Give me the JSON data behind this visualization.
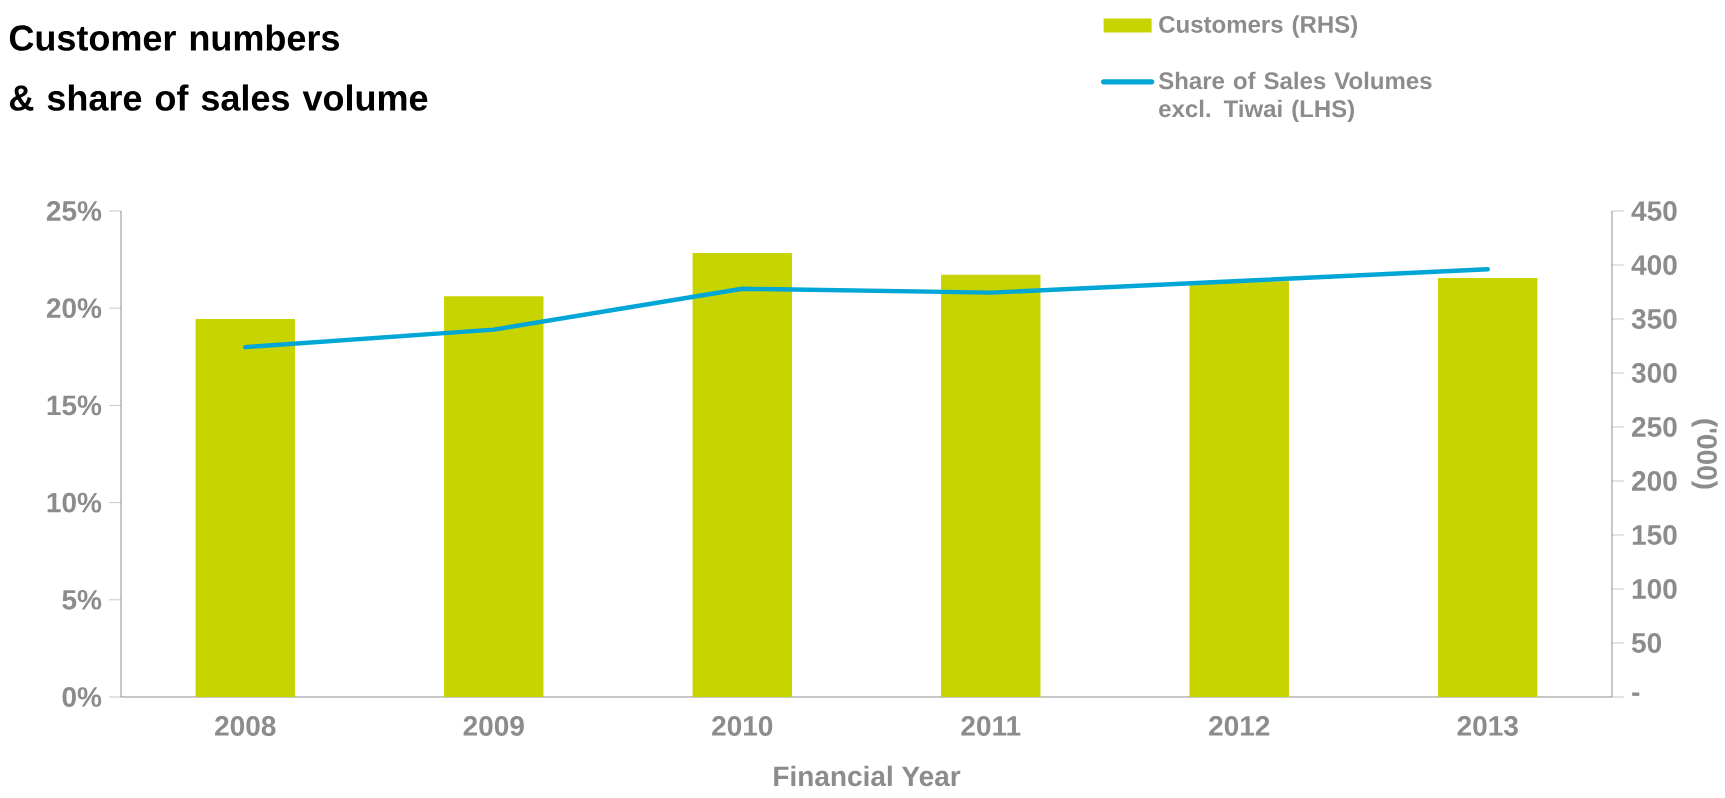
{
  "chart_data": {
    "type": "bar",
    "title": "Customer numbers\n& share of sales volume",
    "xlabel": "Financial Year",
    "y2label": "('000)",
    "categories": [
      "2008",
      "2009",
      "2010",
      "2011",
      "2012",
      "2013"
    ],
    "series": [
      {
        "name": "Customers (RHS)",
        "axis": "y2",
        "color": "#c8d400",
        "values": [
          350,
          371,
          411,
          391,
          385,
          388
        ]
      },
      {
        "name": "Share of Sales Volumes excl. Tiwai (LHS)",
        "type": "line",
        "axis": "y",
        "color": "#00a6d6",
        "values": [
          18.0,
          18.9,
          21.0,
          20.8,
          21.4,
          22.0
        ]
      }
    ],
    "ylim": [
      0,
      25
    ],
    "yticks": [
      {
        "value": 0,
        "label": "0%"
      },
      {
        "value": 5,
        "label": "5%"
      },
      {
        "value": 10,
        "label": "10%"
      },
      {
        "value": 15,
        "label": "15%"
      },
      {
        "value": 20,
        "label": "20%"
      },
      {
        "value": 25,
        "label": "25%"
      }
    ],
    "y2lim": [
      0,
      450
    ],
    "y2ticks": [
      {
        "value": 0,
        "label": "-"
      },
      50,
      100,
      150,
      200,
      250,
      300,
      350,
      400,
      450
    ],
    "legend": "top right"
  }
}
